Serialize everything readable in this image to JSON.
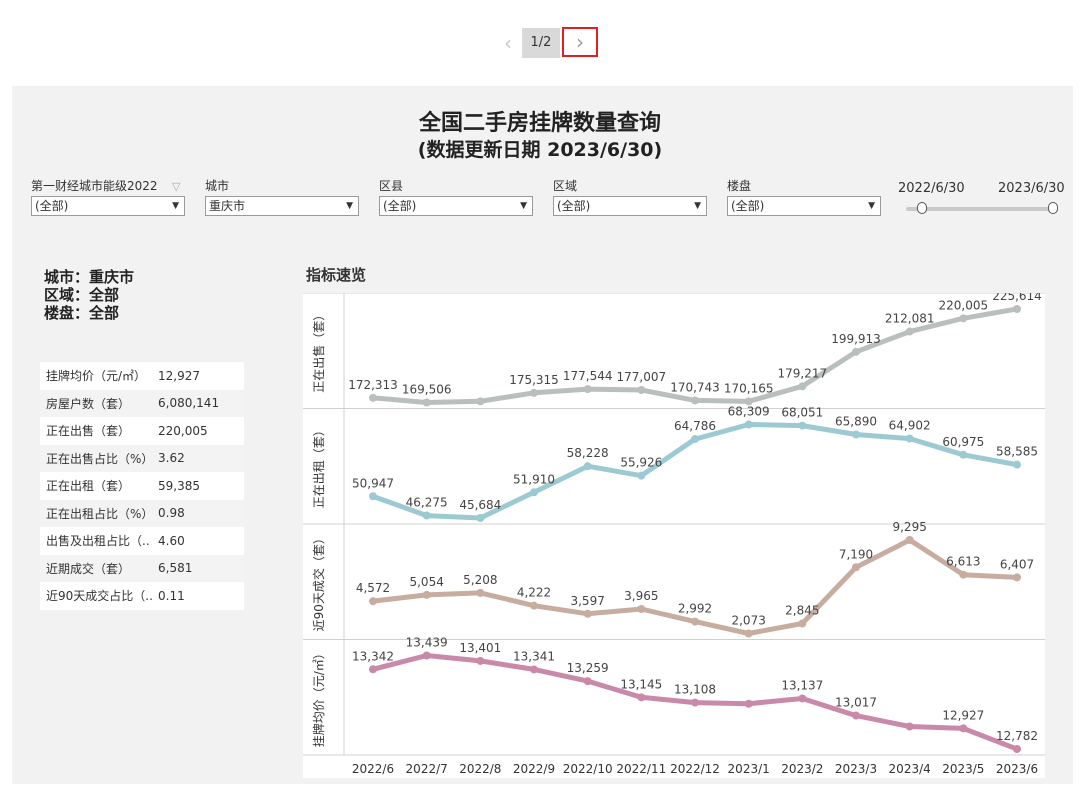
{
  "pager": {
    "prev_icon": "chevron-left-icon",
    "page": "1/2",
    "next_icon": "chevron-right-icon",
    "highlight_color": "#e02020"
  },
  "header": {
    "title": "全国二手房挂牌数量查询",
    "subtitle": "(数据更新日期 2023/6/30)"
  },
  "filters": [
    {
      "label": "第一财经城市能级2022",
      "value": "(全部)"
    },
    {
      "label": "城市",
      "value": "重庆市"
    },
    {
      "label": "区县",
      "value": "(全部)"
    },
    {
      "label": "区域",
      "value": "(全部)"
    },
    {
      "label": "楼盘",
      "value": "(全部)"
    }
  ],
  "date_range": {
    "start": "2022/6/30",
    "end": "2023/6/30"
  },
  "info": {
    "city": "城市：重庆市",
    "area": "区域：全部",
    "project": "楼盘：全部"
  },
  "kpis": [
    {
      "key": "挂牌均价（元/㎡）",
      "value": "12,927"
    },
    {
      "key": "房屋户数（套）",
      "value": "6,080,141"
    },
    {
      "key": "正在出售（套）",
      "value": "220,005"
    },
    {
      "key": "正在出售占比（%）",
      "value": "3.62"
    },
    {
      "key": "正在出租（套）",
      "value": "59,385"
    },
    {
      "key": "正在出租占比（%）",
      "value": "0.98"
    },
    {
      "key": "出售及出租占比（..",
      "value": "4.60"
    },
    {
      "key": "近期成交（套）",
      "value": "6,581"
    },
    {
      "key": "近90天成交占比（..",
      "value": "0.11"
    }
  ],
  "section_title": "指标速览",
  "chart_data": {
    "type": "line",
    "categories": [
      "2022/6",
      "2022/7",
      "2022/8",
      "2022/9",
      "2022/10",
      "2022/11",
      "2022/12",
      "2023/1",
      "2023/2",
      "2023/3",
      "2023/4",
      "2023/5",
      "2023/6"
    ],
    "panels": [
      {
        "ylabel": "正在出售（套）",
        "color": "#b9bfbc",
        "values": [
          172313,
          169506,
          170200,
          175315,
          177544,
          177007,
          170743,
          170165,
          179217,
          199913,
          212081,
          220005,
          225614
        ],
        "labels": [
          "172,313",
          "169,506",
          "",
          "175,315",
          "177,544",
          "177,007",
          "170,743",
          "170,165",
          "179,217",
          "199,913",
          "212,081",
          "220,005",
          "225,614"
        ]
      },
      {
        "ylabel": "正在出租（套）",
        "color": "#9ccad3",
        "values": [
          50947,
          46275,
          45684,
          51910,
          58228,
          55926,
          64786,
          68309,
          68051,
          65890,
          64902,
          60975,
          58585
        ],
        "labels": [
          "50,947",
          "46,275",
          "45,684",
          "51,910",
          "58,228",
          "55,926",
          "64,786",
          "68,309",
          "68,051",
          "65,890",
          "64,902",
          "60,975",
          "58,585"
        ]
      },
      {
        "ylabel": "近90天成交（套）",
        "color": "#c7ada0",
        "values": [
          4572,
          5054,
          5208,
          4222,
          3597,
          3965,
          2992,
          2073,
          2845,
          7190,
          9295,
          6613,
          6407
        ],
        "labels": [
          "4,572",
          "5,054",
          "5,208",
          "4,222",
          "3,597",
          "3,965",
          "2,992",
          "2,073",
          "2,845",
          "7,190",
          "9,295",
          "6,613",
          "6,407"
        ]
      },
      {
        "ylabel": "挂牌均价（元/㎡）",
        "color": "#c98aa9",
        "values": [
          13342,
          13439,
          13401,
          13341,
          13259,
          13145,
          13108,
          13100,
          13137,
          13017,
          12940,
          12927,
          12782
        ],
        "labels": [
          "13,342",
          "13,439",
          "13,401",
          "13,341",
          "13,259",
          "13,145",
          "13,108",
          "",
          "13,137",
          "13,017",
          "",
          "12,927",
          "12,782"
        ]
      }
    ]
  }
}
